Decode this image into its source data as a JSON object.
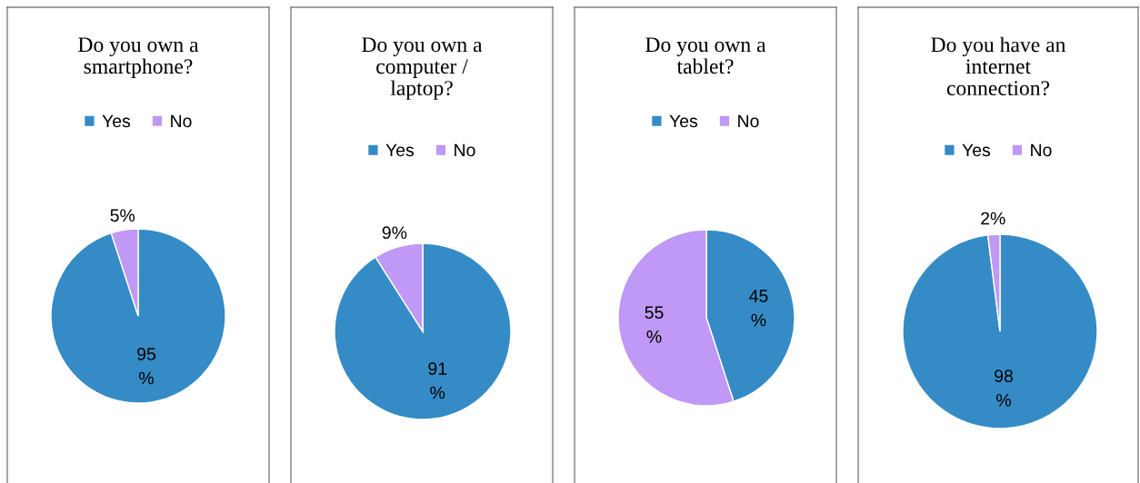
{
  "chart_data": [
    {
      "type": "pie",
      "title": "Do you own a\nsmartphone?",
      "categories": [
        "Yes",
        "No"
      ],
      "values": [
        95,
        5
      ],
      "colors": [
        "#358bc6",
        "#bf99f5"
      ],
      "value_labels": [
        "95\n%",
        "5%"
      ],
      "legend": "top"
    },
    {
      "type": "pie",
      "title": "Do you own a\ncomputer /\nlaptop?",
      "categories": [
        "Yes",
        "No"
      ],
      "values": [
        91,
        9
      ],
      "colors": [
        "#358bc6",
        "#bf99f5"
      ],
      "value_labels": [
        "91\n%",
        "9%"
      ],
      "legend": "top"
    },
    {
      "type": "pie",
      "title": "Do you own a\ntablet?",
      "categories": [
        "Yes",
        "No"
      ],
      "values": [
        45,
        55
      ],
      "colors": [
        "#358bc6",
        "#bf99f5"
      ],
      "value_labels": [
        "45\n%",
        "55\n%"
      ],
      "legend": "top"
    },
    {
      "type": "pie",
      "title": "Do you have an\ninternet\nconnection?",
      "categories": [
        "Yes",
        "No"
      ],
      "values": [
        98,
        2
      ],
      "colors": [
        "#358bc6",
        "#bf99f5"
      ],
      "value_labels": [
        "98\n%",
        "2%"
      ],
      "legend": "top"
    }
  ]
}
